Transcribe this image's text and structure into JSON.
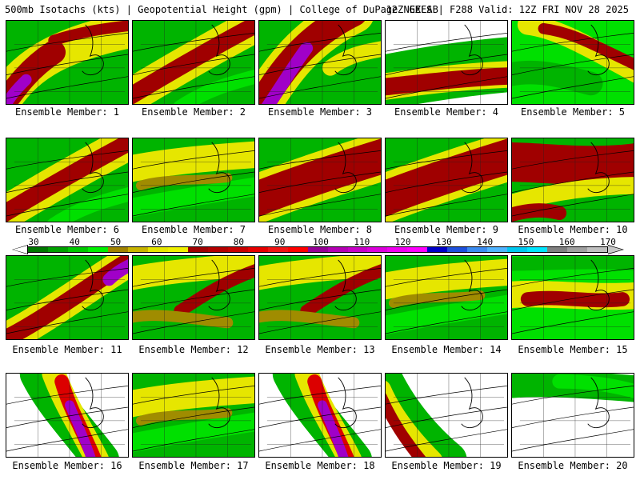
{
  "title": {
    "left": "500mb Isotachs (kts) | Geopotential Height (gpm) | College of DuPage NEXLAB",
    "right": "12Z GEFS | F288 Valid: 12Z FRI NOV 28 2025"
  },
  "colorbar": {
    "labels": [
      "30",
      "40",
      "50",
      "60",
      "70",
      "80",
      "90",
      "100",
      "110",
      "120",
      "130",
      "140",
      "150",
      "160",
      "170"
    ],
    "colors": [
      "#007800",
      "#00a000",
      "#00c800",
      "#00f000",
      "#a08200",
      "#c8b400",
      "#e6e600",
      "#f0f000",
      "#a00000",
      "#b40000",
      "#c80000",
      "#e60000",
      "#f01414",
      "#ff0000",
      "#960096",
      "#b400b4",
      "#c800c8",
      "#dc00dc",
      "#f000f0",
      "#ff00ff",
      "#0000c8",
      "#1e50dc",
      "#3c8cf0",
      "#50b4ff",
      "#00c8f0",
      "#00e6ff",
      "#808080",
      "#a0a0a0",
      "#c0c0c0"
    ]
  },
  "palette": {
    "green_dark": "#008c00",
    "green": "#00b400",
    "green_light": "#00e000",
    "olive": "#a08c00",
    "yellow": "#e6e600",
    "red_dark": "#a00000",
    "red": "#dc0000",
    "purple": "#a000c8",
    "magenta": "#d200d2",
    "white": "#ffffff"
  },
  "members": [
    {
      "caption": "Ensemble Member: 1",
      "style": "jet-sw-strong"
    },
    {
      "caption": "Ensemble Member: 2",
      "style": "jet-diagonal"
    },
    {
      "caption": "Ensemble Member: 3",
      "style": "jet-sw-purple"
    },
    {
      "caption": "Ensemble Member: 4",
      "style": "jet-zonal-south"
    },
    {
      "caption": "Ensemble Member: 5",
      "style": "jet-north"
    },
    {
      "caption": "Ensemble Member: 6",
      "style": "jet-diagonal"
    },
    {
      "caption": "Ensemble Member: 7",
      "style": "weak"
    },
    {
      "caption": "Ensemble Member: 8",
      "style": "jet-broad"
    },
    {
      "caption": "Ensemble Member: 9",
      "style": "jet-broad"
    },
    {
      "caption": "Ensemble Member: 10",
      "style": "jet-trough"
    },
    {
      "caption": "Ensemble Member: 11",
      "style": "jet-diagonal-purple"
    },
    {
      "caption": "Ensemble Member: 12",
      "style": "weak-jet"
    },
    {
      "caption": "Ensemble Member: 13",
      "style": "weak-jet"
    },
    {
      "caption": "Ensemble Member: 14",
      "style": "weak"
    },
    {
      "caption": "Ensemble Member: 15",
      "style": "jet-zonal-mid"
    },
    {
      "caption": "Ensemble Member: 16",
      "style": "jet-trough-purple"
    },
    {
      "caption": "Ensemble Member: 17",
      "style": "weak"
    },
    {
      "caption": "Ensemble Member: 18",
      "style": "jet-trough-purple"
    },
    {
      "caption": "Ensemble Member: 19",
      "style": "jet-sw-band"
    },
    {
      "caption": "Ensemble Member: 20",
      "style": "jet-north-weak"
    }
  ]
}
